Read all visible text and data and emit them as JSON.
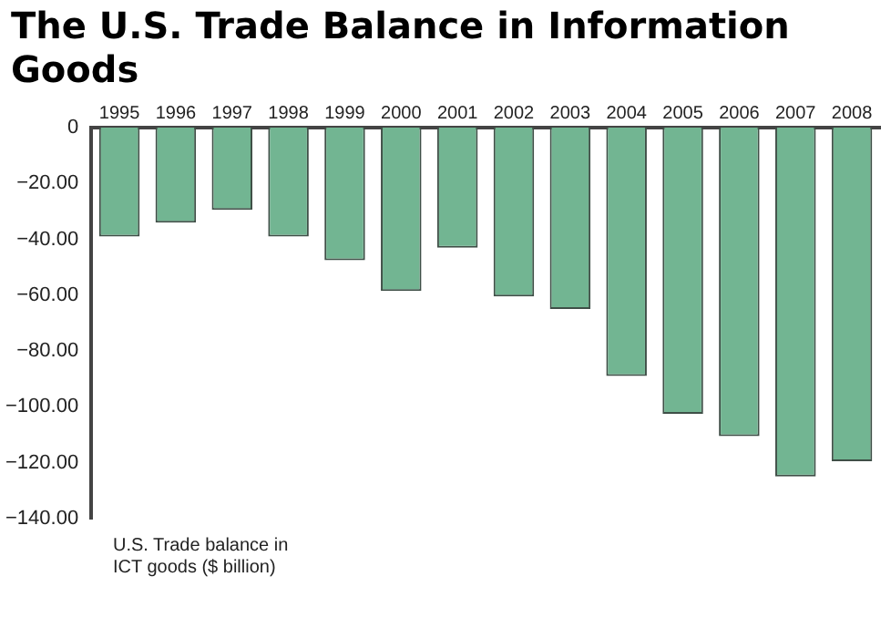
{
  "chart_data": {
    "type": "bar",
    "title": "The U.S. Trade Balance in Information Goods",
    "annotations": [
      "U.S. Trade balance in ICT goods ($ billion)"
    ],
    "categories": [
      "1995",
      "1996",
      "1997",
      "1998",
      "1999",
      "2000",
      "2001",
      "2002",
      "2003",
      "2004",
      "2005",
      "2006",
      "2007",
      "2008"
    ],
    "values": [
      -39,
      -34,
      -29.5,
      -39,
      -47.5,
      -58.5,
      -43,
      -60.5,
      -65,
      -89,
      -102.5,
      -110.5,
      -125,
      -119.5
    ],
    "color": "#72b592",
    "ylim": [
      -140,
      0
    ],
    "yticks": [
      0,
      {
        "value": -20,
        "label": "−20.00"
      },
      {
        "value": -40,
        "label": "−40.00"
      },
      {
        "value": -60,
        "label": "−60.00"
      },
      {
        "value": -80,
        "label": "−80.00"
      },
      {
        "value": -100,
        "label": "−100.00"
      },
      {
        "value": -120,
        "label": "−120.00"
      },
      {
        "value": -140,
        "label": "−140.00"
      }
    ],
    "grid": false,
    "legend": false
  }
}
